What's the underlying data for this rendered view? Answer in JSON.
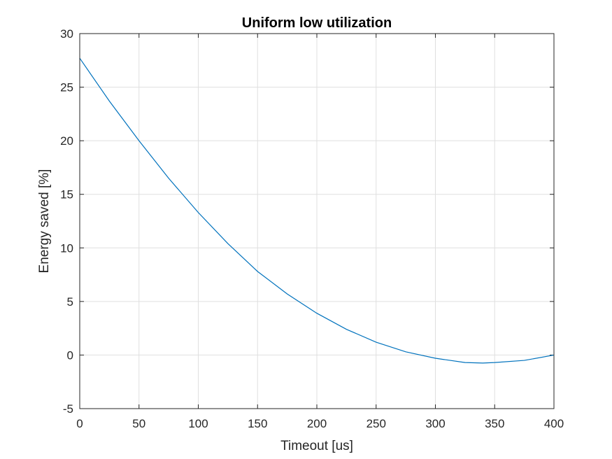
{
  "chart_data": {
    "type": "line",
    "title": "Uniform low utilization",
    "xlabel": "Timeout [us]",
    "ylabel": "Energy saved [%]",
    "xlim": [
      0,
      400
    ],
    "ylim": [
      -5,
      30
    ],
    "xticks": [
      0,
      50,
      100,
      150,
      200,
      250,
      300,
      350,
      400
    ],
    "yticks": [
      -5,
      0,
      5,
      10,
      15,
      20,
      25,
      30
    ],
    "grid": true,
    "series_color": "#0072BD",
    "series": [
      {
        "x": [
          0,
          25,
          50,
          75,
          100,
          125,
          150,
          175,
          200,
          225,
          250,
          275,
          300,
          325,
          340,
          350,
          375,
          400
        ],
        "y": [
          27.7,
          23.7,
          20.0,
          16.5,
          13.3,
          10.4,
          7.8,
          5.7,
          3.9,
          2.4,
          1.2,
          0.3,
          -0.3,
          -0.7,
          -0.75,
          -0.7,
          -0.5,
          0.0
        ]
      }
    ]
  }
}
